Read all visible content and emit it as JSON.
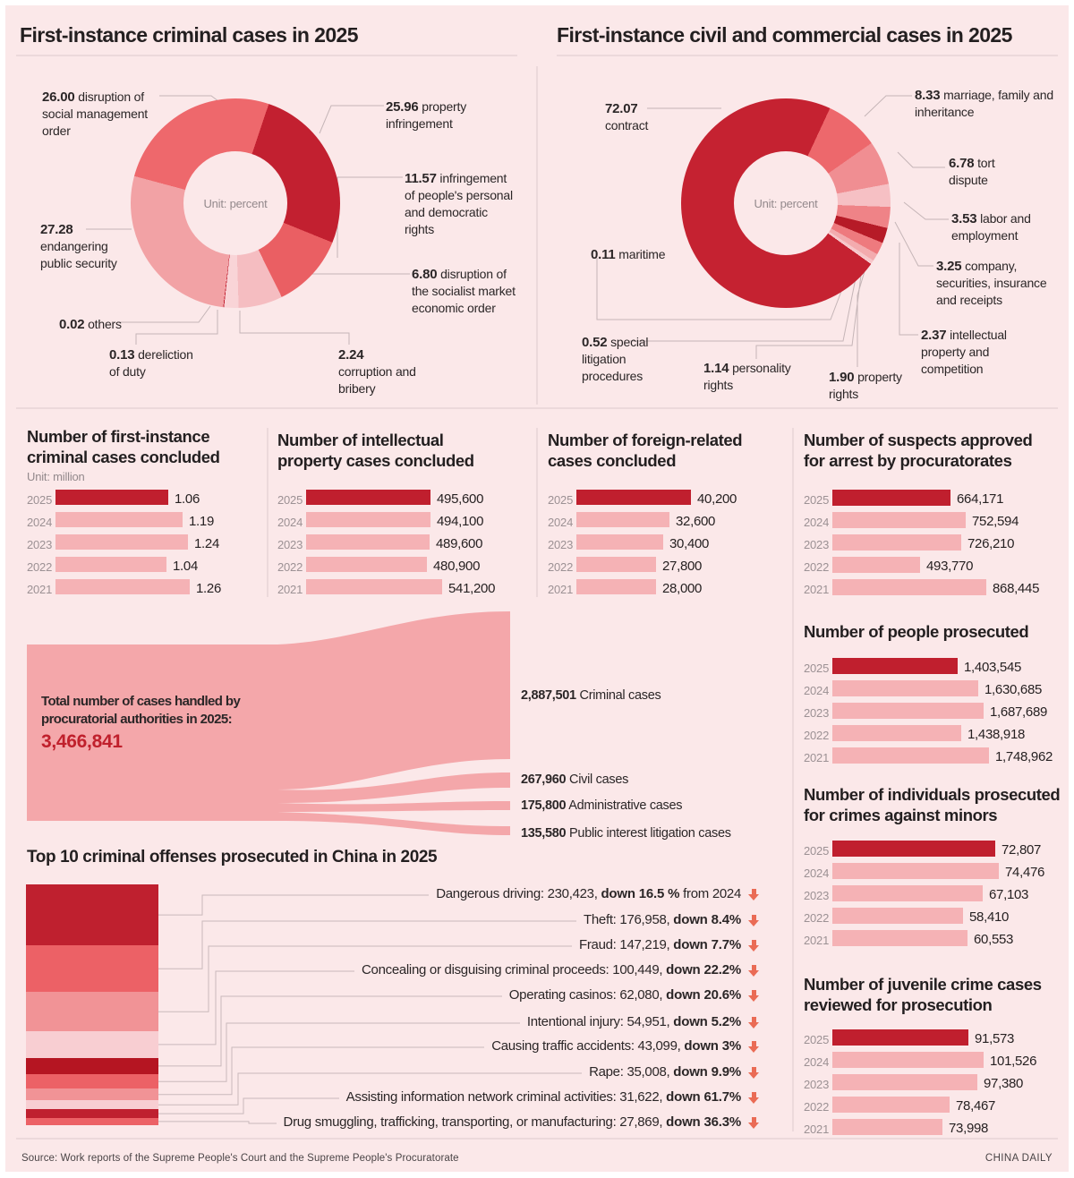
{
  "page": {
    "left_title": "First-instance criminal cases in 2025",
    "right_title": "First-instance civil and commercial cases in 2025",
    "source": "Source: Work reports of the Supreme People's Court and the Supreme People's Procuratorate",
    "brand": "CHINA DAILY"
  },
  "colors": {
    "canvas": "#fbe8e9",
    "highlight": "#c01f2e",
    "bar": "#f5b2b5",
    "sankey": "#f4a7aa",
    "accent_number": "#c0202c",
    "arrow": "#ea6b55"
  },
  "chart_data": [
    {
      "id": "criminal_donut",
      "type": "pie",
      "title": "First-instance criminal cases in 2025",
      "unit": "Unit: percent",
      "start_angle_deg": 285,
      "slices": [
        {
          "display": "26.00",
          "value": 26.0,
          "label": "disruption of social management order",
          "color": "#ee686c"
        },
        {
          "display": "25.96",
          "value": 25.96,
          "label": "property infringement",
          "color": "#c22030"
        },
        {
          "display": "11.57",
          "value": 11.57,
          "label": "infringement of people's personal and democratic rights",
          "color": "#ea5f63"
        },
        {
          "display": "6.80",
          "value": 6.8,
          "label": "disruption of the socialist market economic order",
          "color": "#f5bdc1"
        },
        {
          "display": "2.24",
          "value": 2.24,
          "label": "corruption and bribery",
          "color": "#f9d4d7"
        },
        {
          "display": "0.13",
          "value": 0.13,
          "label": "dereliction of duty",
          "color": "#c22030"
        },
        {
          "display": "0.02",
          "value": 0.02,
          "label": "others",
          "color": "#fdeef0"
        },
        {
          "display": "27.28",
          "value": 27.28,
          "label": "endangering public security",
          "color": "#f2a2a5"
        }
      ]
    },
    {
      "id": "civil_commercial_donut",
      "type": "pie",
      "title": "First-instance civil and commercial cases in 2025",
      "unit": "Unit: percent",
      "start_angle_deg": 125.5,
      "slices": [
        {
          "display": "72.07",
          "value": 72.07,
          "label": "contract",
          "color": "#c52231"
        },
        {
          "display": "8.33",
          "value": 8.33,
          "label": "marriage, family and inheritance",
          "color": "#ed686c"
        },
        {
          "display": "6.78",
          "value": 6.78,
          "label": "tort dispute",
          "color": "#f08e92"
        },
        {
          "display": "3.53",
          "value": 3.53,
          "label": "labor and employment",
          "color": "#f6c0c4"
        },
        {
          "display": "3.25",
          "value": 3.25,
          "label": "company, securities, insurance and receipts",
          "color": "#ef8387"
        },
        {
          "display": "2.37",
          "value": 2.37,
          "label": "intellectual property and competition",
          "color": "#b61b27"
        },
        {
          "display": "1.90",
          "value": 1.9,
          "label": "property rights",
          "color": "#ee7a7e"
        },
        {
          "display": "1.14",
          "value": 1.14,
          "label": "personality rights",
          "color": "#f3abae"
        },
        {
          "display": "0.52",
          "value": 0.52,
          "label": "special litigation procedures",
          "color": "#f7c7ca"
        },
        {
          "display": "0.11",
          "value": 0.11,
          "label": "maritime",
          "color": "#fbdee0"
        }
      ]
    },
    {
      "id": "criminal_cases_concluded",
      "type": "bar",
      "title_lines": [
        "Number of first-instance",
        "criminal cases concluded"
      ],
      "unit": "Unit: million",
      "categories": [
        "2025",
        "2024",
        "2023",
        "2022",
        "2021"
      ],
      "values": [
        1.06,
        1.19,
        1.24,
        1.04,
        1.26
      ],
      "value_labels": [
        "1.06",
        "1.19",
        "1.24",
        "1.04",
        "1.26"
      ],
      "highlight_year": "2025"
    },
    {
      "id": "ip_cases_concluded",
      "type": "bar",
      "title_lines": [
        "Number of intellectual",
        "property cases concluded"
      ],
      "unit": null,
      "categories": [
        "2025",
        "2024",
        "2023",
        "2022",
        "2021"
      ],
      "values": [
        495600,
        494100,
        489600,
        480900,
        541200
      ],
      "value_labels": [
        "495,600",
        "494,100",
        "489,600",
        "480,900",
        "541,200"
      ],
      "highlight_year": "2025"
    },
    {
      "id": "foreign_related_cases_concluded",
      "type": "bar",
      "title_lines": [
        "Number of foreign-related",
        "cases concluded"
      ],
      "unit": null,
      "categories": [
        "2025",
        "2024",
        "2023",
        "2022",
        "2021"
      ],
      "values": [
        40200,
        32600,
        30400,
        27800,
        28000
      ],
      "value_labels": [
        "40,200",
        "32,600",
        "30,400",
        "27,800",
        "28,000"
      ],
      "highlight_year": "2025"
    },
    {
      "id": "suspects_approved_for_arrest",
      "type": "bar",
      "title_lines": [
        "Number of suspects approved",
        "for arrest by procuratorates"
      ],
      "unit": null,
      "categories": [
        "2025",
        "2024",
        "2023",
        "2022",
        "2021"
      ],
      "values": [
        664171,
        752594,
        726210,
        493770,
        868445
      ],
      "value_labels": [
        "664,171",
        "752,594",
        "726,210",
        "493,770",
        "868,445"
      ],
      "highlight_year": "2025"
    },
    {
      "id": "people_prosecuted",
      "type": "bar",
      "title_lines": [
        "Number of people prosecuted"
      ],
      "unit": null,
      "categories": [
        "2025",
        "2024",
        "2023",
        "2022",
        "2021"
      ],
      "values": [
        1403545,
        1630685,
        1687689,
        1438918,
        1748962
      ],
      "value_labels": [
        "1,403,545",
        "1,630,685",
        "1,687,689",
        "1,438,918",
        "1,748,962"
      ],
      "highlight_year": "2025"
    },
    {
      "id": "prosecuted_crimes_against_minors",
      "type": "bar",
      "title_lines": [
        "Number of individuals prosecuted",
        "for crimes against minors"
      ],
      "unit": null,
      "categories": [
        "2025",
        "2024",
        "2023",
        "2022",
        "2021"
      ],
      "values": [
        72807,
        74476,
        67103,
        58410,
        60553
      ],
      "value_labels": [
        "72,807",
        "74,476",
        "67,103",
        "58,410",
        "60,553"
      ],
      "highlight_year": "2025"
    },
    {
      "id": "juvenile_crime_cases_reviewed",
      "type": "bar",
      "title_lines": [
        "Number of juvenile crime cases",
        "reviewed for prosecution"
      ],
      "unit": null,
      "categories": [
        "2025",
        "2024",
        "2023",
        "2022",
        "2021"
      ],
      "values": [
        91573,
        101526,
        97380,
        78467,
        73998
      ],
      "value_labels": [
        "91,573",
        "101,526",
        "97,380",
        "78,467",
        "73,998"
      ],
      "highlight_year": "2025"
    },
    {
      "id": "procuratorial_cases_sankey",
      "type": "sankey",
      "total": {
        "label_lines": [
          "Total number of cases handled by",
          "procuratorial authorities in 2025:"
        ],
        "value_label": "3,466,841",
        "value": 3466841
      },
      "flows": [
        {
          "value_label": "2,887,501",
          "label": "Criminal cases",
          "value": 2887501
        },
        {
          "value_label": "267,960",
          "label": "Civil cases",
          "value": 267960
        },
        {
          "value_label": "175,800",
          "label": "Administrative cases",
          "value": 175800
        },
        {
          "value_label": "135,580",
          "label": "Public interest litigation cases",
          "value": 135580
        }
      ]
    },
    {
      "id": "top10_offenses",
      "type": "bar",
      "title": "Top 10 criminal offenses prosecuted in China in 2025",
      "segment_colors": [
        "#bf202f",
        "#ec6166",
        "#f19396",
        "#f8ced2",
        "#b51522",
        "#ec6166",
        "#f19396",
        "#f8ced2",
        "#bf202f",
        "#ec6166"
      ],
      "items": [
        {
          "pre": "Dangerous driving: 230,423, ",
          "bold": "down 16.5 %",
          "post": " from 2024",
          "value": 230423
        },
        {
          "pre": "Theft: 176,958, ",
          "bold": "down 8.4%",
          "post": "",
          "value": 176958
        },
        {
          "pre": "Fraud: 147,219, ",
          "bold": "down 7.7%",
          "post": "",
          "value": 147219
        },
        {
          "pre": "Concealing or disguising criminal proceeds: 100,449, ",
          "bold": "down 22.2%",
          "post": "",
          "value": 100449
        },
        {
          "pre": "Operating casinos: 62,080, ",
          "bold": "down 20.6%",
          "post": "",
          "value": 62080
        },
        {
          "pre": "Intentional injury: 54,951, ",
          "bold": "down 5.2%",
          "post": "",
          "value": 54951
        },
        {
          "pre": "Causing traffic accidents: 43,099, ",
          "bold": "down 3%",
          "post": "",
          "value": 43099
        },
        {
          "pre": "Rape: 35,008, ",
          "bold": "down 9.9%",
          "post": "",
          "value": 35008
        },
        {
          "pre": "Assisting information network criminal activities: 31,622, ",
          "bold": "down 61.7%",
          "post": "",
          "value": 31622
        },
        {
          "pre": "Drug smuggling, trafficking, transporting, or manufacturing: 27,869, ",
          "bold": "down 36.3%",
          "post": "",
          "value": 27869
        }
      ]
    }
  ]
}
